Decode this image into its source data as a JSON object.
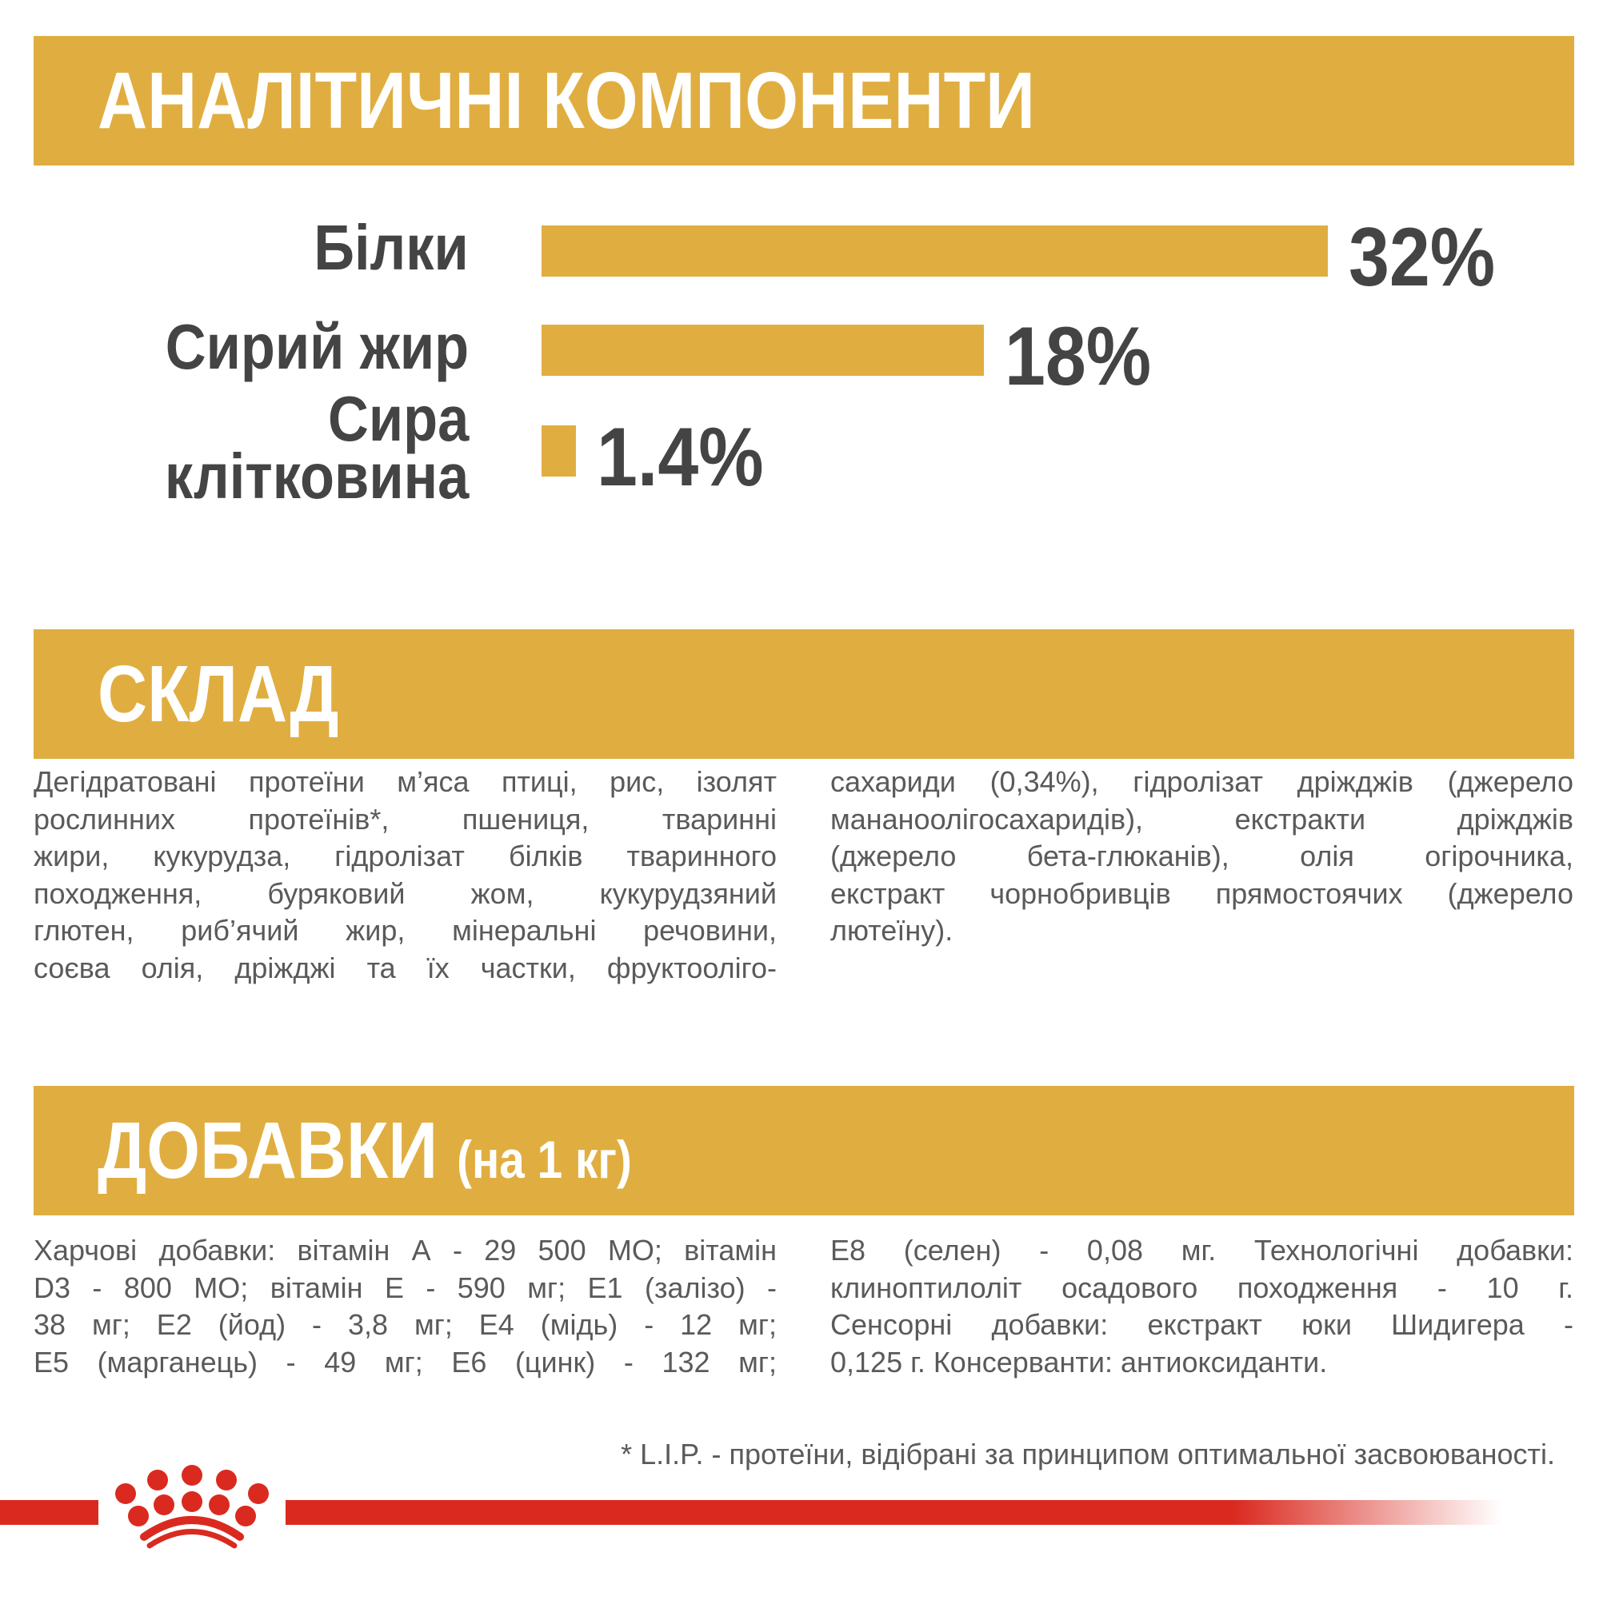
{
  "colors": {
    "accent": "#E0AE40",
    "brand_red": "#DA2A20",
    "text_dark": "#444444"
  },
  "analytical": {
    "title": "АНАЛІТИЧНІ КОМПОНЕНТИ",
    "items": [
      {
        "label_lines": [
          "Білки"
        ],
        "value": 32,
        "value_label": "32%"
      },
      {
        "label_lines": [
          "Сирий жир"
        ],
        "value": 18,
        "value_label": "18%"
      },
      {
        "label_lines": [
          "Сира",
          "клітковина"
        ],
        "value": 1.4,
        "value_label": "1.4%"
      }
    ]
  },
  "composition": {
    "title": "СКЛАД",
    "left_lines": [
      "Дегідратовані протеїни м’яса птиці, рис, ізолят",
      "рослинних протеїнів*, пшениця, тваринні",
      "жири, кукурудза, гідролізат білків тваринного",
      "походження, буряковий жом, кукурудзяний",
      "глютен, риб’ячий жир, мінеральні речовини,",
      "соєва олія, дріжджі та їх частки, фруктооліго-"
    ],
    "right_lines": [
      "сахариди (0,34%), гідролізат дріжджів (джерело",
      "мананоолігосахаридів), екстракти дріжджів",
      "(джерело бета-глюканів), олія огірочника,",
      "екстракт чорнобривців прямостоячих (джерело",
      "лютеїну)."
    ]
  },
  "additives": {
    "title": "ДОБАВКИ",
    "title_suffix": "(на 1 кг)",
    "left_lines": [
      "Харчові добавки: вітамін А - 29 500 МО; вітамін",
      "D3 - 800 МО; вітамін Е - 590 мг; Е1 (залізо) -",
      "38 мг; Е2 (йод) - 3,8 мг; Е4 (мідь) - 12 мг;",
      "Е5 (марганець) - 49 мг; Е6 (цинк) - 132 мг;"
    ],
    "right_lines": [
      "Е8 (селен) - 0,08 мг. Технологічні добавки:",
      "клиноптилоліт осадового походження - 10 г.",
      "Сенсорні добавки: екстракт юки Шидигера -",
      "0,125 г. Консерванти: антиоксиданти."
    ]
  },
  "footnote": "* L.I.P. - протеїни, відібрані за принципом оптимальної засвоюваності.",
  "logo": {
    "icon": "royal-canin-crown-icon"
  }
}
